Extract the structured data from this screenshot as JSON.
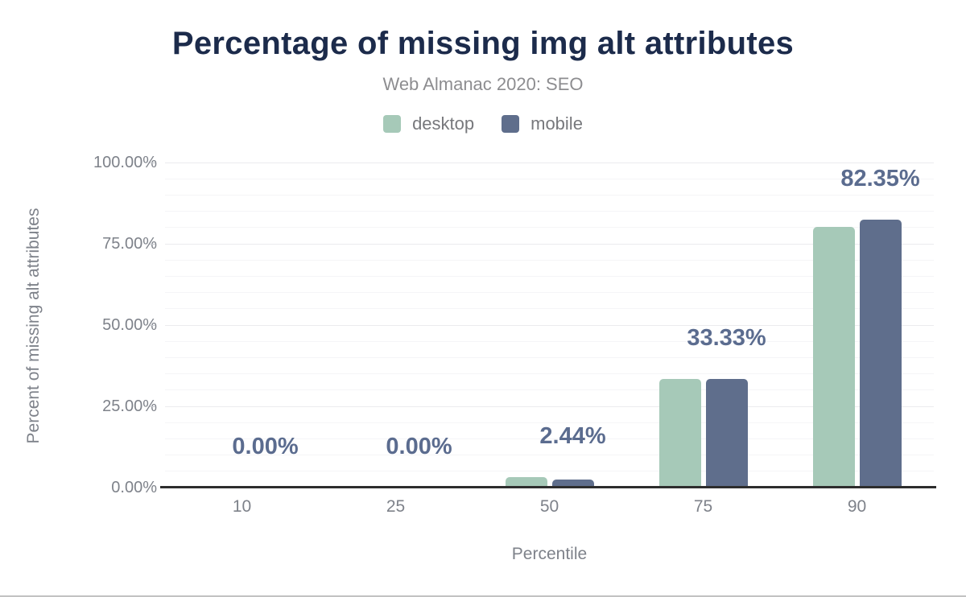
{
  "header": {
    "title": "Percentage of missing img alt attributes",
    "subtitle": "Web Almanac 2020: SEO"
  },
  "axes": {
    "y_title": "Percent of missing alt attributes",
    "x_title": "Percentile"
  },
  "chart_data": {
    "type": "bar",
    "title": "Percentage of missing img alt attributes",
    "subtitle": "Web Almanac 2020: SEO",
    "categories": [
      "10",
      "25",
      "50",
      "75",
      "90"
    ],
    "series": [
      {
        "name": "desktop",
        "color": "#a6c9b8",
        "values": [
          0,
          0,
          3.2,
          33.3,
          80.2
        ]
      },
      {
        "name": "mobile",
        "color": "#5f6e8c",
        "values": [
          0,
          0,
          2.44,
          33.33,
          82.35
        ]
      }
    ],
    "value_labels": [
      "0.00%",
      "0.00%",
      "2.44%",
      "33.33%",
      "82.35%"
    ],
    "value_labels_follow_series": "mobile",
    "xlabel": "Percentile",
    "ylabel": "Percent of missing alt attributes",
    "ylim": [
      0,
      100
    ],
    "y_tick_step": 25,
    "y_tick_labels": [
      "0.00%",
      "25.00%",
      "50.00%",
      "75.00%",
      "100.00%"
    ],
    "grid_minor_step": 5,
    "grid": "horizontal",
    "legend_position": "top-center",
    "colors": {
      "title": "#1c2b4b",
      "subtitle": "#8d8d90",
      "value_label": "#5b6c8f",
      "axis_line": "#2d2d2d",
      "grid_major": "#ebebee",
      "grid_minor": "#f5f5f7",
      "tick": "#c9ccd1",
      "axis_text": "#7e828a"
    }
  }
}
